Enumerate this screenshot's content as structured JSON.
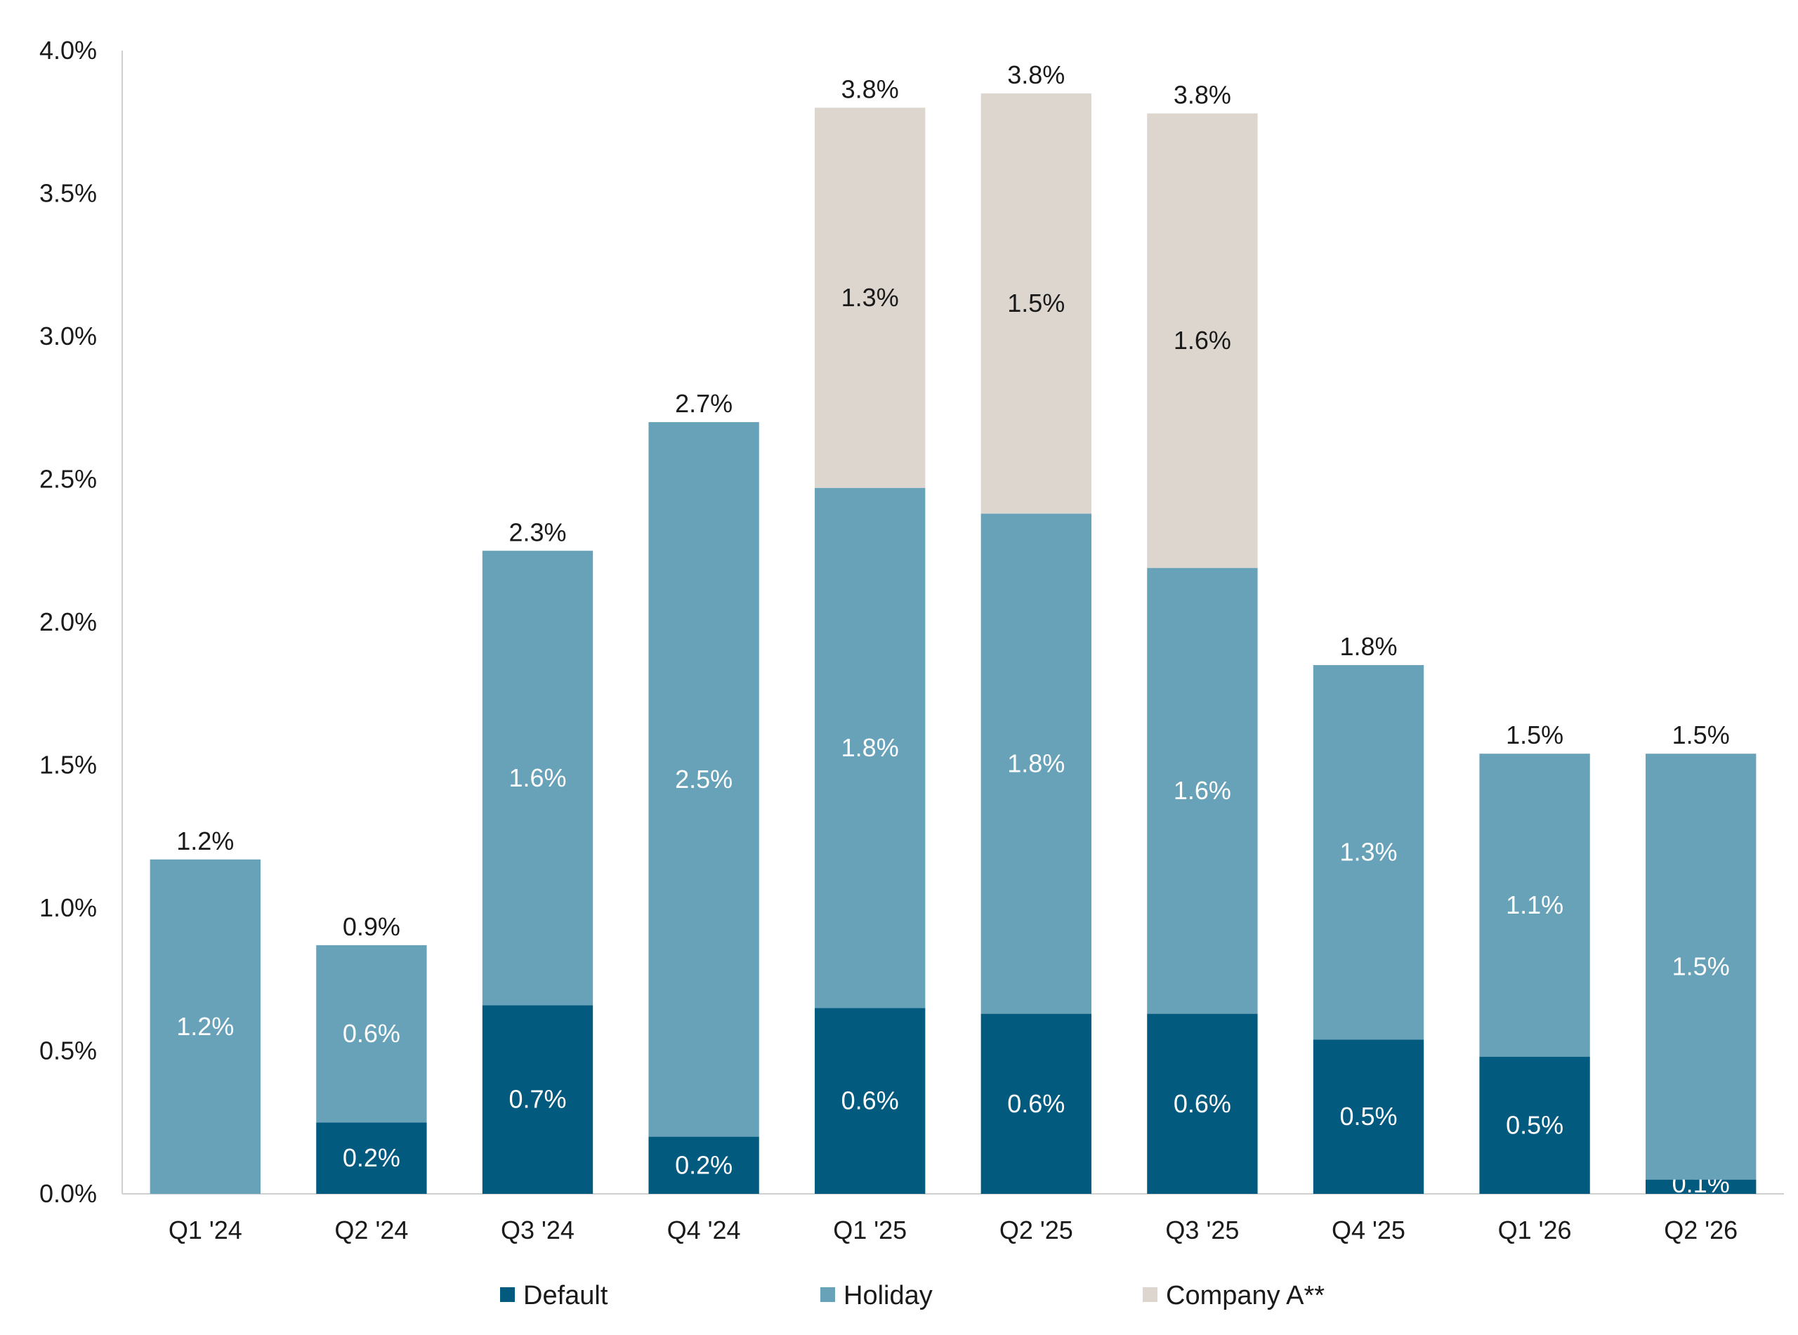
{
  "chart_data": {
    "type": "bar",
    "stacked": true,
    "title": "",
    "xlabel": "",
    "ylabel": "",
    "ylim": [
      0,
      4.0
    ],
    "y_ticks": [
      0.0,
      0.5,
      1.0,
      1.5,
      2.0,
      2.5,
      3.0,
      3.5,
      4.0
    ],
    "y_tick_labels": [
      "0.0%",
      "0.5%",
      "1.0%",
      "1.5%",
      "2.0%",
      "2.5%",
      "3.0%",
      "3.5%",
      "4.0%"
    ],
    "grid": false,
    "legend_position": "bottom",
    "categories": [
      "Q1 '24",
      "Q2 '24",
      "Q3 '24",
      "Q4 '24",
      "Q1 '25",
      "Q2 '25",
      "Q3 '25",
      "Q4 '25",
      "Q1 '26",
      "Q2 '26"
    ],
    "series": [
      {
        "name": "Default",
        "color": "#035a7f",
        "label_color": "#ffffff",
        "values": [
          0.0,
          0.25,
          0.66,
          0.2,
          0.65,
          0.63,
          0.63,
          0.54,
          0.48,
          0.05
        ],
        "labels": [
          "",
          "0.2%",
          "0.7%",
          "0.2%",
          "0.6%",
          "0.6%",
          "0.6%",
          "0.5%",
          "0.5%",
          "0.1%"
        ]
      },
      {
        "name": "Holiday",
        "color": "#68a2b9",
        "label_color": "#ffffff",
        "values": [
          1.17,
          0.62,
          1.59,
          2.5,
          1.82,
          1.75,
          1.56,
          1.31,
          1.06,
          1.49
        ],
        "labels": [
          "1.2%",
          "0.6%",
          "1.6%",
          "2.5%",
          "1.8%",
          "1.8%",
          "1.6%",
          "1.3%",
          "1.1%",
          "1.5%"
        ]
      },
      {
        "name": "Company A**",
        "color": "#dcd6cf",
        "label_color": "#1a1a1a",
        "values": [
          0.0,
          0.0,
          0.0,
          0.0,
          1.33,
          1.47,
          1.59,
          0.0,
          0.0,
          0.0
        ],
        "labels": [
          "",
          "",
          "",
          "",
          "1.3%",
          "1.5%",
          "1.6%",
          "",
          "",
          ""
        ]
      }
    ],
    "totals": [
      1.17,
      0.87,
      2.25,
      2.7,
      3.8,
      3.85,
      3.78,
      1.85,
      1.54,
      1.54
    ],
    "total_labels": [
      "1.2%",
      "0.9%",
      "2.3%",
      "2.7%",
      "3.8%",
      "3.8%",
      "3.8%",
      "1.8%",
      "1.5%",
      "1.5%"
    ]
  }
}
